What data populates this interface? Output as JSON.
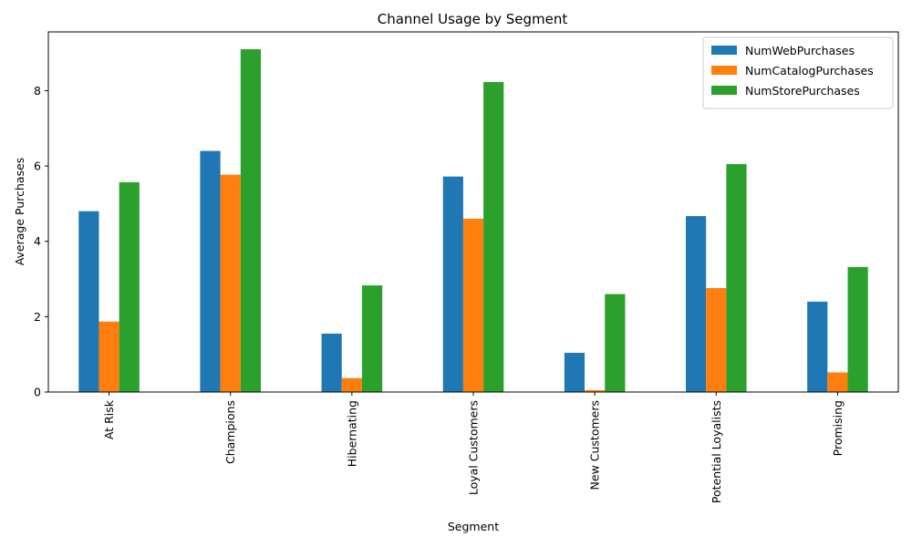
{
  "chart_data": {
    "type": "bar",
    "title": "Channel Usage by Segment",
    "xlabel": "Segment",
    "ylabel": "Average Purchases",
    "categories": [
      "At Risk",
      "Champions",
      "Hibernating",
      "Loyal Customers",
      "New Customers",
      "Potential Loyalists",
      "Promising"
    ],
    "series": [
      {
        "name": "NumWebPurchases",
        "color": "#1f77b4",
        "values": [
          4.8,
          6.4,
          1.55,
          5.72,
          1.04,
          4.67,
          2.4
        ]
      },
      {
        "name": "NumCatalogPurchases",
        "color": "#ff7f0e",
        "values": [
          1.87,
          5.77,
          0.37,
          4.6,
          0.05,
          2.76,
          0.52
        ]
      },
      {
        "name": "NumStorePurchases",
        "color": "#2ca02c",
        "values": [
          5.57,
          9.1,
          2.83,
          8.23,
          2.6,
          6.05,
          3.32
        ]
      }
    ],
    "ylim": [
      0,
      9.56
    ],
    "yticks": [
      0,
      2,
      4,
      6,
      8
    ],
    "legend_position": "top-right",
    "grid": false
  }
}
